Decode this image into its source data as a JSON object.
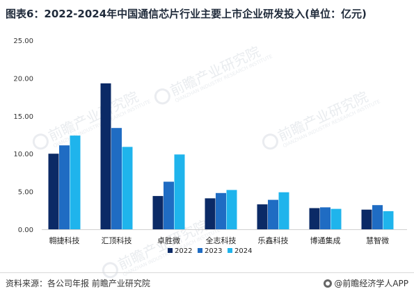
{
  "header": {
    "title": "图表6：2022-2024年中国通信芯片行业主要上市企业研发投入(单位：亿元)"
  },
  "footer": {
    "source": "资料来源：各公司年报 前瞻产业研究院",
    "brand": "@前瞻经济学人APP"
  },
  "watermark": {
    "text": "前瞻产业研究院",
    "subtext": "QIANZHAN INDUSTRY RESEARCH INSTITUTE"
  },
  "colors": {
    "series_2022": "#0b2a66",
    "series_2023": "#1f6cc3",
    "series_2024": "#1fb4ec",
    "axis": "#d0d0d0"
  },
  "chart_data": {
    "type": "bar",
    "title": "图表6：2022-2024年中国通信芯片行业主要上市企业研发投入(单位：亿元)",
    "categories": [
      "翱捷科技",
      "汇顶科技",
      "卓胜微",
      "全志科技",
      "乐鑫科技",
      "博通集成",
      "慧智微"
    ],
    "series": [
      {
        "name": "2022",
        "values": [
          10.0,
          19.3,
          4.4,
          4.1,
          3.3,
          2.8,
          2.6
        ]
      },
      {
        "name": "2023",
        "values": [
          11.1,
          13.4,
          6.3,
          4.8,
          3.9,
          2.9,
          3.2
        ]
      },
      {
        "name": "2024",
        "values": [
          12.4,
          10.9,
          9.9,
          5.2,
          4.9,
          2.7,
          2.4
        ]
      }
    ],
    "yticks": [
      "0.00",
      "5.00",
      "10.00",
      "15.00",
      "20.00",
      "25.00"
    ],
    "ylim": [
      0,
      25
    ],
    "xlabel": "",
    "ylabel": "",
    "grid": false,
    "legend_position": "bottom"
  }
}
